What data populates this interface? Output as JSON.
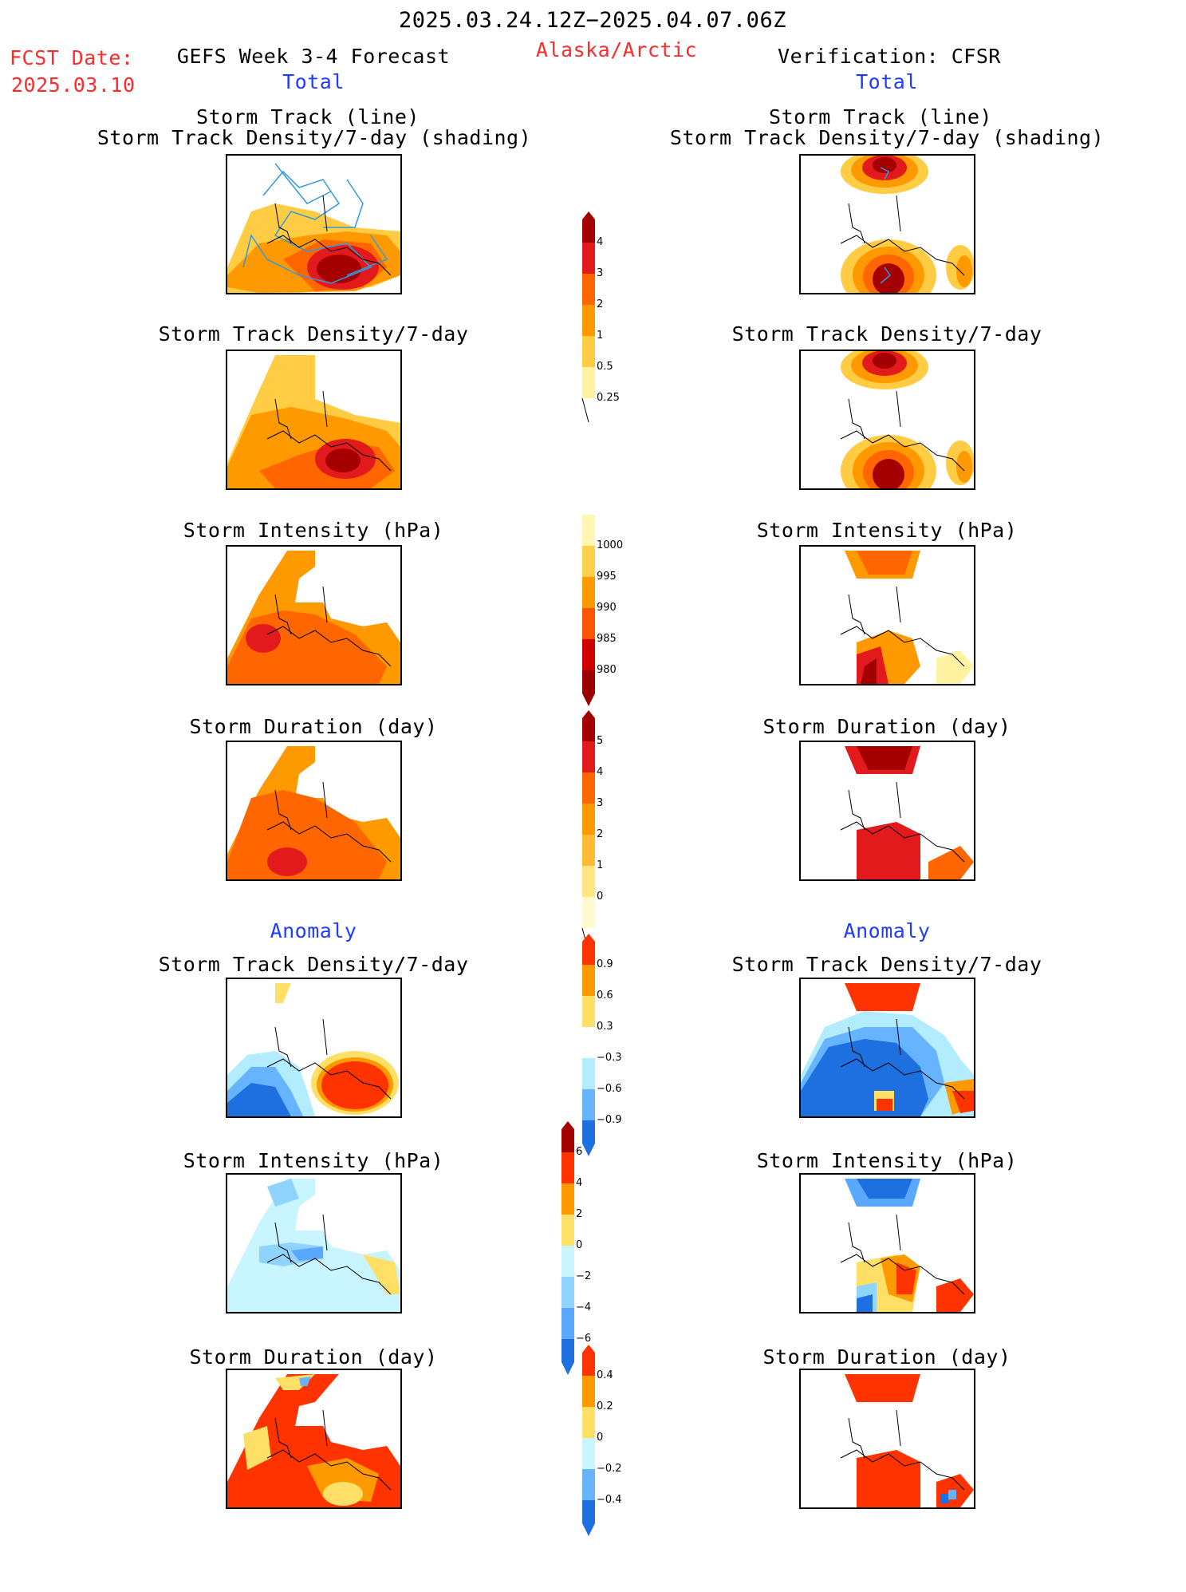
{
  "header": {
    "date_range": "2025.03.24.12Z−2025.04.07.06Z",
    "fcst_label": "FCST Date:",
    "fcst_date": "2025.03.10",
    "model": "GEFS Week 3-4 Forecast",
    "region": "Alaska/Arctic",
    "verification": "Verification: CFSR"
  },
  "columns": {
    "left_section_total": "Total",
    "right_section_total": "Total",
    "left_section_anomaly": "Anomaly",
    "right_section_anomaly": "Anomaly"
  },
  "panel_titles": {
    "track_line": "Storm Track (line)",
    "track_shading": "Storm Track Density/7-day (shading)",
    "density": "Storm Track Density/7-day",
    "intensity": "Storm Intensity (hPa)",
    "duration": "Storm Duration (day)"
  },
  "colorbars": {
    "density": {
      "labels": [
        "4",
        "3",
        "2",
        "1",
        "0.5",
        "0.25"
      ],
      "colors": [
        "#a50000",
        "#e31a1c",
        "#ff6600",
        "#ff9900",
        "#ffcc44",
        "#fff2a0"
      ]
    },
    "intensity": {
      "labels": [
        "1000",
        "995",
        "990",
        "985",
        "980"
      ],
      "colors": [
        "#fff6b3",
        "#ffd24a",
        "#ff9900",
        "#ff5500",
        "#d10000",
        "#9a0000"
      ]
    },
    "duration": {
      "labels": [
        "5",
        "4",
        "3",
        "2",
        "1",
        "0"
      ],
      "colors": [
        "#a50000",
        "#e31a1c",
        "#ff6600",
        "#ff9900",
        "#ffbb33",
        "#ffe680",
        "#fffbd0"
      ]
    },
    "anom_density": {
      "labels": [
        "0.9",
        "0.6",
        "0.3",
        "−0.3",
        "−0.6",
        "−0.9"
      ],
      "colors": [
        "#ff3300",
        "#ff9900",
        "#ffe066",
        "#ffffff",
        "#b3ecff",
        "#66b3ff",
        "#1e6fe0"
      ]
    },
    "anom_intensity": {
      "labels": [
        "6",
        "4",
        "2",
        "0",
        "−2",
        "−4",
        "−6"
      ],
      "colors": [
        "#a50000",
        "#ff3300",
        "#ff9900",
        "#ffe066",
        "#c8f5ff",
        "#8fd4ff",
        "#5aa8ff",
        "#1e6fe0"
      ]
    },
    "anom_duration": {
      "labels": [
        "0.4",
        "0.2",
        "0",
        "−0.2",
        "−0.4"
      ],
      "colors": [
        "#ff3300",
        "#ff9900",
        "#ffe066",
        "#c8f5ff",
        "#66b3ff",
        "#1e6fe0"
      ]
    }
  },
  "colors": {
    "title_red": "#ff2a2a",
    "title_blue": "#1e3cff"
  }
}
